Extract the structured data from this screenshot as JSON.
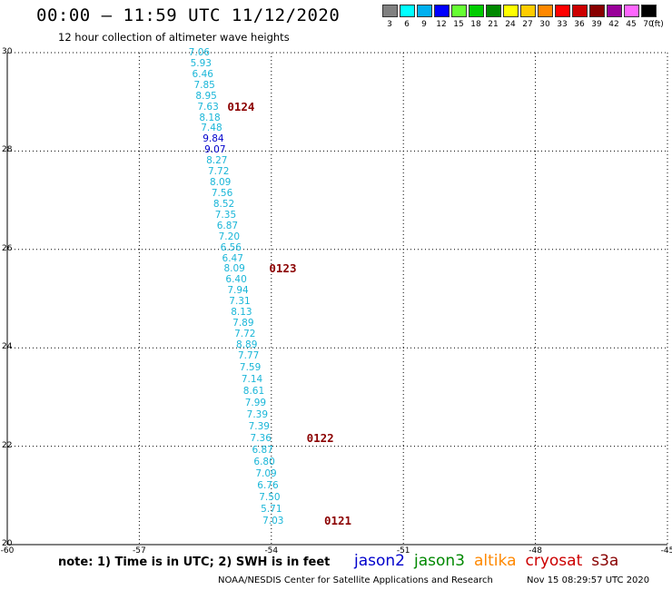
{
  "header": {
    "title": "00:00 – 11:59 UTC 11/12/2020",
    "subtitle": "12 hour collection of altimeter wave heights"
  },
  "legend": {
    "items": [
      {
        "label": "3",
        "color": "#808080"
      },
      {
        "label": "6",
        "color": "#00ffff"
      },
      {
        "label": "9",
        "color": "#00b0f0"
      },
      {
        "label": "12",
        "color": "#0000ff"
      },
      {
        "label": "15",
        "color": "#66ff33"
      },
      {
        "label": "18",
        "color": "#00cc00"
      },
      {
        "label": "21",
        "color": "#008800"
      },
      {
        "label": "24",
        "color": "#ffff00"
      },
      {
        "label": "27",
        "color": "#ffcc00"
      },
      {
        "label": "30",
        "color": "#ff8800"
      },
      {
        "label": "33",
        "color": "#ff0000"
      },
      {
        "label": "36",
        "color": "#cc0000"
      },
      {
        "label": "39",
        "color": "#880000"
      },
      {
        "label": "42",
        "color": "#990099"
      },
      {
        "label": "45",
        "color": "#ff66ff"
      },
      {
        "label": "70",
        "color": "#000000"
      }
    ],
    "unit": "(ft)"
  },
  "chart_data": {
    "type": "scatter",
    "xlim": [
      -60,
      -45
    ],
    "ylim": [
      20,
      30
    ],
    "x_ticks": [
      -60,
      -57,
      -54,
      -51,
      -48,
      -45
    ],
    "y_ticks": [
      20,
      22,
      24,
      26,
      28,
      30
    ],
    "grid": true,
    "points": [
      {
        "x": -55.88,
        "y": 30.0,
        "label": "7.06"
      },
      {
        "x": -55.84,
        "y": 29.78,
        "label": "5.93"
      },
      {
        "x": -55.8,
        "y": 29.56,
        "label": "6.46"
      },
      {
        "x": -55.76,
        "y": 29.34,
        "label": "7.85"
      },
      {
        "x": -55.72,
        "y": 29.12,
        "label": "8.95"
      },
      {
        "x": -55.68,
        "y": 28.9,
        "label": "7.63"
      },
      {
        "x": -55.64,
        "y": 28.68,
        "label": "8.18"
      },
      {
        "x": -55.6,
        "y": 28.46,
        "label": "7.48"
      },
      {
        "x": -55.56,
        "y": 28.24,
        "label": "9.84",
        "hi": true
      },
      {
        "x": -55.52,
        "y": 28.02,
        "label": "9.07",
        "hi": true
      },
      {
        "x": -55.48,
        "y": 27.8,
        "label": "8.27"
      },
      {
        "x": -55.44,
        "y": 27.58,
        "label": "7.72"
      },
      {
        "x": -55.4,
        "y": 27.36,
        "label": "8.09"
      },
      {
        "x": -55.36,
        "y": 27.14,
        "label": "7.56"
      },
      {
        "x": -55.32,
        "y": 26.92,
        "label": "8.52"
      },
      {
        "x": -55.28,
        "y": 26.7,
        "label": "7.35"
      },
      {
        "x": -55.24,
        "y": 26.48,
        "label": "6.87"
      },
      {
        "x": -55.2,
        "y": 26.26,
        "label": "7.20"
      },
      {
        "x": -55.16,
        "y": 26.04,
        "label": "6.56"
      },
      {
        "x": -55.12,
        "y": 25.82,
        "label": "6.47"
      },
      {
        "x": -55.08,
        "y": 25.6,
        "label": "8.09"
      },
      {
        "x": -55.04,
        "y": 25.38,
        "label": "6.40"
      },
      {
        "x": -55.0,
        "y": 25.16,
        "label": "7.94"
      },
      {
        "x": -54.96,
        "y": 24.94,
        "label": "7.31"
      },
      {
        "x": -54.92,
        "y": 24.72,
        "label": "8.13"
      },
      {
        "x": -54.88,
        "y": 24.5,
        "label": "7.89"
      },
      {
        "x": -54.84,
        "y": 24.28,
        "label": "7.72"
      },
      {
        "x": -54.8,
        "y": 24.06,
        "label": "8.89"
      },
      {
        "x": -54.76,
        "y": 23.84,
        "label": "7.77"
      },
      {
        "x": -54.72,
        "y": 23.6,
        "label": "7.59"
      },
      {
        "x": -54.68,
        "y": 23.36,
        "label": "7.14"
      },
      {
        "x": -54.64,
        "y": 23.12,
        "label": "8.61"
      },
      {
        "x": -54.6,
        "y": 22.88,
        "label": "7.99"
      },
      {
        "x": -54.56,
        "y": 22.64,
        "label": "7.39"
      },
      {
        "x": -54.52,
        "y": 22.4,
        "label": "7.39"
      },
      {
        "x": -54.48,
        "y": 22.16,
        "label": "7.36"
      },
      {
        "x": -54.44,
        "y": 21.92,
        "label": "6.87"
      },
      {
        "x": -54.4,
        "y": 21.68,
        "label": "6.80"
      },
      {
        "x": -54.36,
        "y": 21.44,
        "label": "7.09"
      },
      {
        "x": -54.32,
        "y": 21.2,
        "label": "6.76"
      },
      {
        "x": -54.28,
        "y": 20.96,
        "label": "7.50"
      },
      {
        "x": -54.24,
        "y": 20.72,
        "label": "5.71"
      },
      {
        "x": -54.2,
        "y": 20.48,
        "label": "7.03"
      }
    ],
    "pass_labels": [
      {
        "label": "0124",
        "x": -55.0,
        "y": 28.9
      },
      {
        "label": "0123",
        "x": -54.05,
        "y": 25.6
      },
      {
        "label": "0122",
        "x": -53.2,
        "y": 22.16
      },
      {
        "label": "0121",
        "x": -52.8,
        "y": 20.48
      }
    ]
  },
  "footer": {
    "note": "note:  1) Time is in UTC;  2) SWH is in feet",
    "satellites": [
      {
        "name": "jason2",
        "color": "#0000cc"
      },
      {
        "name": "jason3",
        "color": "#008800"
      },
      {
        "name": "altika",
        "color": "#ff8800"
      },
      {
        "name": "cryosat",
        "color": "#cc0000"
      },
      {
        "name": "s3a",
        "color": "#880000"
      }
    ],
    "credit": "NOAA/NESDIS Center for Satellite Applications and Research",
    "stamp": "Nov 15 08:29:57 UTC 2020"
  }
}
